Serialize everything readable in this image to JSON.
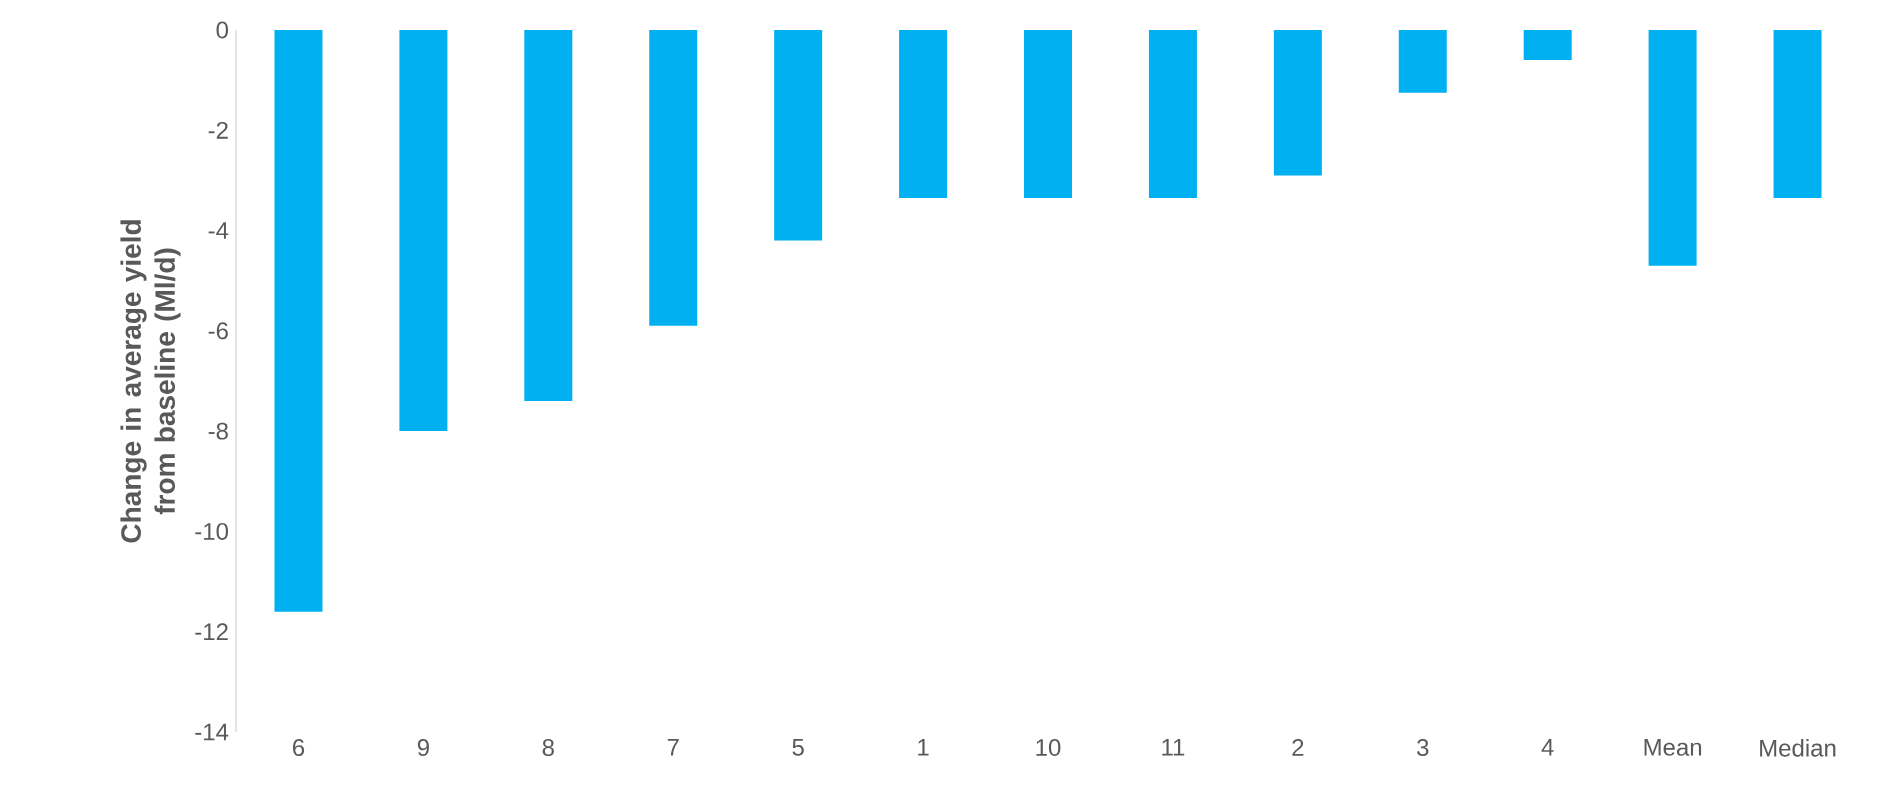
{
  "chart_data": {
    "type": "bar",
    "ylabel": "Change in average yield from baseline (Ml/d)",
    "categories": [
      "6",
      "9",
      "8",
      "7",
      "5",
      "1",
      "10",
      "11",
      "2",
      "3",
      "4",
      "Mean",
      "Median"
    ],
    "values": [
      -11.6,
      -8.0,
      -7.4,
      -5.9,
      -4.2,
      -3.35,
      -3.35,
      -3.35,
      -2.9,
      -1.25,
      -0.6,
      -4.7,
      -3.35
    ],
    "color": "#00b0f0",
    "ylim": [
      -14,
      0
    ],
    "yticks": [
      -14,
      -12,
      -10,
      -8,
      -6,
      -4,
      -2,
      0
    ],
    "grid": false
  }
}
